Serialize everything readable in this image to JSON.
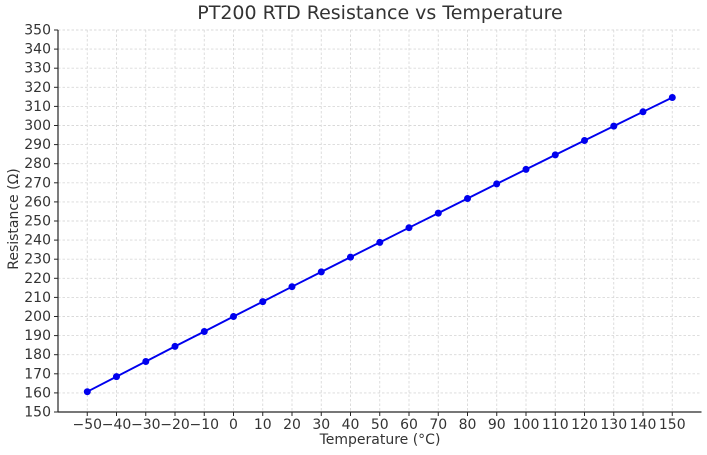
{
  "chart_data": {
    "type": "line",
    "title": "PT200 RTD Resistance vs Temperature",
    "xlabel": "Temperature (°C)",
    "ylabel": "Resistance (Ω)",
    "x": [
      -50,
      -40,
      -30,
      -20,
      -10,
      0,
      10,
      20,
      30,
      40,
      50,
      60,
      70,
      80,
      90,
      100,
      110,
      120,
      130,
      140,
      150
    ],
    "series": [
      {
        "name": "PT200",
        "values": [
          160.63,
          168.55,
          176.45,
          184.32,
          192.17,
          200.0,
          207.81,
          215.59,
          223.35,
          231.08,
          238.79,
          246.48,
          254.15,
          261.79,
          269.41,
          277.01,
          284.59,
          292.14,
          299.66,
          307.17,
          314.65
        ]
      }
    ],
    "xlim": [
      -60,
      160
    ],
    "ylim": [
      150,
      350
    ],
    "xticks": [
      -50,
      -40,
      -30,
      -20,
      -10,
      0,
      10,
      20,
      30,
      40,
      50,
      60,
      70,
      80,
      90,
      100,
      110,
      120,
      130,
      140,
      150
    ],
    "xtick_labels": [
      "−50",
      "−40",
      "−30",
      "−20",
      "−10",
      "0",
      "10",
      "20",
      "30",
      "40",
      "50",
      "60",
      "70",
      "80",
      "90",
      "100",
      "110",
      "120",
      "130",
      "140",
      "150"
    ],
    "yticks": [
      150,
      160,
      170,
      180,
      190,
      200,
      210,
      220,
      230,
      240,
      250,
      260,
      270,
      280,
      290,
      300,
      310,
      320,
      330,
      340,
      350
    ],
    "ytick_labels": [
      "150",
      "160",
      "170",
      "180",
      "190",
      "200",
      "210",
      "220",
      "230",
      "240",
      "250",
      "260",
      "270",
      "280",
      "290",
      "300",
      "310",
      "320",
      "330",
      "340",
      "350"
    ],
    "grid": true,
    "grid_style": "dashed",
    "legend_position": "none",
    "marker": "circle",
    "colors": {
      "line": "#0000ee",
      "grid": "#d9d9d9",
      "axis": "#262626",
      "text": "#333333",
      "background": "#ffffff"
    }
  }
}
